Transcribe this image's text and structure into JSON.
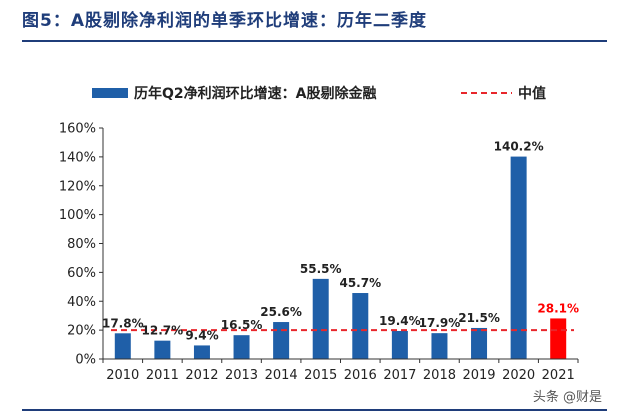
{
  "header": {
    "title": "图5：A股剔除净利润的单季环比增速：历年二季度"
  },
  "watermark": "头条 @财是",
  "colors": {
    "bar": "#1f5fa8",
    "bar_highlight": "#ff0000",
    "median_line": "#e8262b",
    "title": "#1f3d7a",
    "label_highlight": "#ff0000"
  },
  "chart_data": {
    "type": "bar",
    "title": "",
    "categories": [
      "2010",
      "2011",
      "2012",
      "2013",
      "2014",
      "2015",
      "2016",
      "2017",
      "2018",
      "2019",
      "2020",
      "2021"
    ],
    "series": [
      {
        "name": "历年Q2净利润环比增速：A股剔除金融",
        "values": [
          17.8,
          12.7,
          9.4,
          16.5,
          25.6,
          55.5,
          45.7,
          19.4,
          17.9,
          21.5,
          140.2,
          28.1
        ]
      }
    ],
    "data_labels": [
      "17.8%",
      "12.7%",
      "9.4%",
      "16.5%",
      "25.6%",
      "55.5%",
      "45.7%",
      "19.4%",
      "17.9%",
      "21.5%",
      "140.2%",
      "28.1%"
    ],
    "highlight_category": "2021",
    "median": {
      "name": "中值",
      "value": 20.0
    },
    "ylim": [
      0,
      160
    ],
    "yticks": [
      0,
      20,
      40,
      60,
      80,
      100,
      120,
      140,
      160
    ],
    "ytick_labels": [
      "0%",
      "20%",
      "40%",
      "60%",
      "80%",
      "100%",
      "120%",
      "140%",
      "160%"
    ],
    "xlabel": "",
    "ylabel": "",
    "grid": false,
    "legend": "top-center"
  }
}
